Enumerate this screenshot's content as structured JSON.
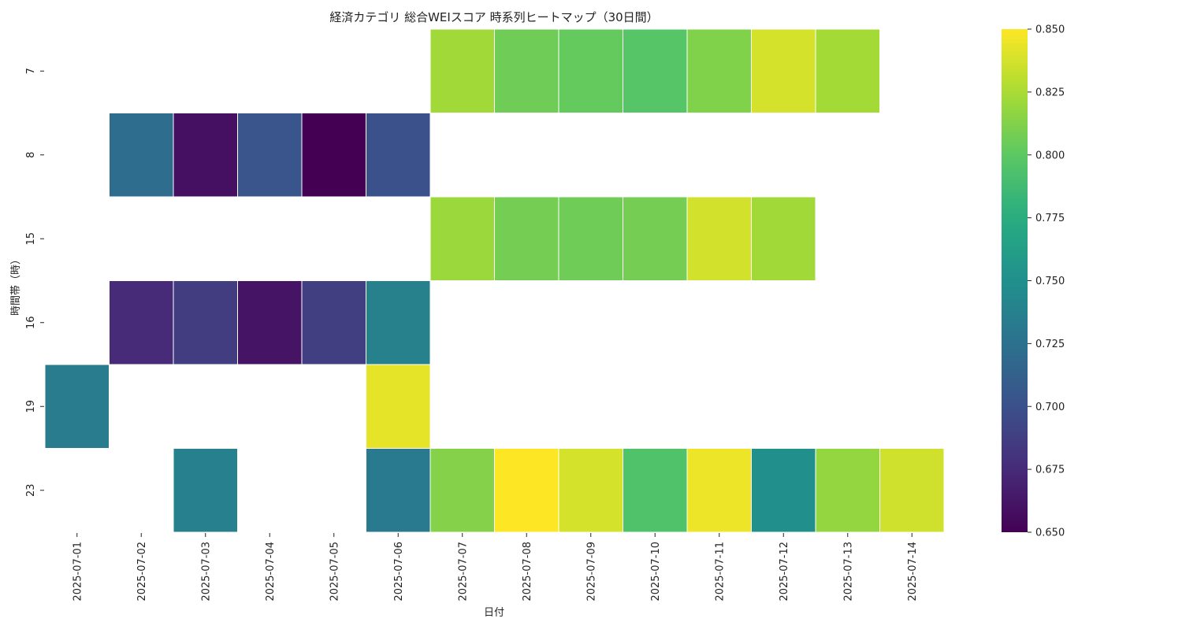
{
  "chart_data": {
    "type": "heatmap",
    "title": "経済カテゴリ 総合WEIスコア 時系列ヒートマップ（30日間）",
    "xlabel": "日付",
    "ylabel": "時間帯（時）",
    "x_categories": [
      "2025-07-01",
      "2025-07-02",
      "2025-07-03",
      "2025-07-04",
      "2025-07-05",
      "2025-07-06",
      "2025-07-07",
      "2025-07-08",
      "2025-07-09",
      "2025-07-10",
      "2025-07-11",
      "2025-07-12",
      "2025-07-13",
      "2025-07-14"
    ],
    "y_categories": [
      "7",
      "8",
      "15",
      "16",
      "19",
      "23"
    ],
    "values": [
      [
        null,
        null,
        null,
        null,
        null,
        null,
        0.822,
        0.806,
        0.803,
        0.797,
        0.812,
        0.838,
        0.823,
        null
      ],
      [
        null,
        0.722,
        0.659,
        0.703,
        0.65,
        0.7,
        null,
        null,
        null,
        null,
        null,
        null,
        null,
        null
      ],
      [
        null,
        null,
        null,
        null,
        null,
        null,
        0.82,
        0.808,
        0.806,
        0.808,
        0.837,
        0.822,
        null,
        null
      ],
      [
        null,
        0.674,
        0.686,
        0.661,
        0.687,
        0.738,
        null,
        null,
        null,
        null,
        null,
        null,
        null,
        null
      ],
      [
        0.734,
        null,
        null,
        null,
        null,
        0.843,
        null,
        null,
        null,
        null,
        null,
        null,
        null,
        null
      ],
      [
        null,
        null,
        0.737,
        null,
        null,
        0.732,
        0.813,
        0.85,
        0.838,
        0.794,
        0.845,
        0.75,
        0.818,
        0.836
      ]
    ],
    "colormap": "viridis",
    "vmin": 0.65,
    "vmax": 0.85,
    "colorbar_ticks": [
      "0.650",
      "0.675",
      "0.700",
      "0.725",
      "0.750",
      "0.775",
      "0.800",
      "0.825",
      "0.850"
    ],
    "grid": false,
    "cell_border_color": "#ffffff"
  }
}
